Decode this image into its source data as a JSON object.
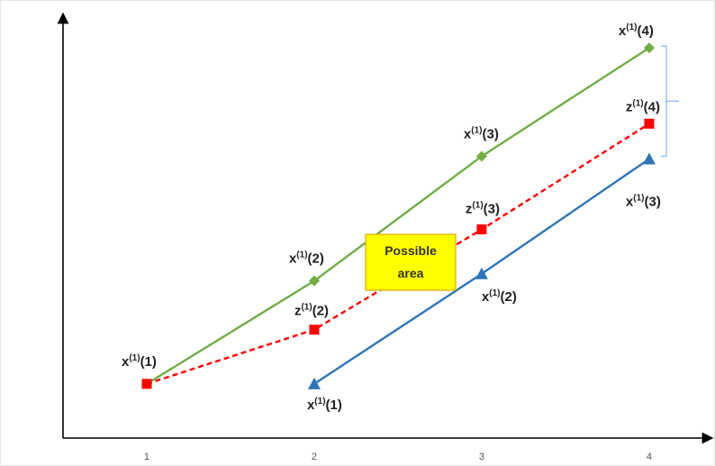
{
  "chart_data": {
    "type": "line",
    "categories": [
      "1",
      "2",
      "3",
      "4"
    ],
    "x": [
      1,
      2,
      3,
      4
    ],
    "grid": false,
    "series": [
      {
        "key": "upper",
        "values": [
          1,
          2.9,
          5.2,
          7.2
        ],
        "color": "#70ad47",
        "dash": false,
        "marker": "diamond",
        "point_labels": [
          {
            "base": "x",
            "sup": "(1)",
            "arg": "(1)"
          },
          {
            "base": "x",
            "sup": "(1)",
            "arg": "(2)"
          },
          {
            "base": "x",
            "sup": "(1)",
            "arg": "(3)"
          },
          {
            "base": "x",
            "sup": "(1)",
            "arg": "(4)"
          }
        ]
      },
      {
        "key": "middle",
        "values": [
          1,
          2.0,
          3.85,
          5.8
        ],
        "color": "#ff0000",
        "dash": true,
        "marker": "square",
        "point_labels": [
          null,
          {
            "base": "z",
            "sup": "(1)",
            "arg": "(2)"
          },
          {
            "base": "z",
            "sup": "(1)",
            "arg": "(3)"
          },
          {
            "base": "z",
            "sup": "(1)",
            "arg": "(4)"
          }
        ]
      },
      {
        "key": "lower",
        "x": [
          2,
          3,
          4
        ],
        "values": [
          1,
          3.03,
          5.15
        ],
        "color": "#2e75b6",
        "dash": false,
        "marker": "triangle",
        "point_labels": [
          {
            "base": "x",
            "sup": "(1)",
            "arg": "(1)"
          },
          {
            "base": "x",
            "sup": "(1)",
            "arg": "(2)"
          },
          {
            "base": "x",
            "sup": "(1)",
            "arg": "(3)"
          }
        ]
      }
    ],
    "annotation": {
      "text_lines": [
        "Possible",
        "area"
      ],
      "fill": "#ffff00",
      "border": "#e0a800"
    },
    "brace_color": "#9dc3e6",
    "xlim": [
      0.5,
      4.35
    ],
    "ylim": [
      0,
      7.75
    ]
  }
}
